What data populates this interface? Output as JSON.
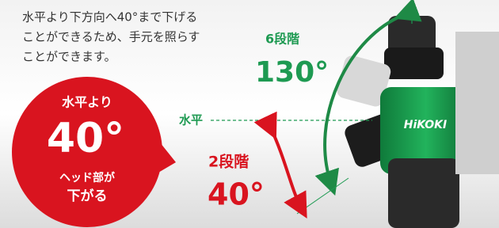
{
  "description": [
    "水平より下方向へ40°まで下げる",
    "ことができるため、手元を照らす",
    "ことができます。"
  ],
  "badge": {
    "top": "水平より",
    "value": "40°",
    "bottom": [
      "ヘッド部が",
      "下がる"
    ]
  },
  "upper": {
    "steps": "6段階",
    "angle": "130°"
  },
  "horizontal_label": "水平",
  "lower": {
    "steps": "2段階",
    "angle": "40°"
  },
  "logo": "HiKOKI"
}
